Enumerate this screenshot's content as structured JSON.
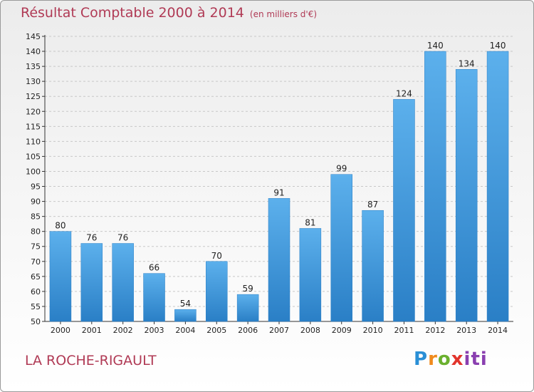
{
  "chart_data": {
    "type": "bar",
    "title": "Résultat Comptable 2000 à 2014",
    "subtitle": "(en milliers d'€)",
    "categories": [
      "2000",
      "2001",
      "2002",
      "2003",
      "2004",
      "2005",
      "2006",
      "2007",
      "2008",
      "2009",
      "2010",
      "2011",
      "2012",
      "2013",
      "2014"
    ],
    "values": [
      80,
      76,
      76,
      66,
      54,
      70,
      59,
      91,
      81,
      99,
      87,
      124,
      140,
      134,
      140
    ],
    "ylim": [
      50,
      145
    ],
    "yticks": [
      50,
      55,
      60,
      65,
      70,
      75,
      80,
      85,
      90,
      95,
      100,
      105,
      110,
      115,
      120,
      125,
      130,
      135,
      140,
      145
    ],
    "xlabel": "",
    "ylabel": "",
    "grid": "horizontal dashed",
    "bar_color": "#4a9fe0",
    "bar_color_dark": "#1f77c0"
  },
  "commune": "LA ROCHE-RIGAULT",
  "logo": {
    "parts": [
      "P",
      "r",
      "o",
      "x",
      "iti"
    ]
  },
  "colors": {
    "title": "#b03a55",
    "grid": "#c8c8c8"
  }
}
